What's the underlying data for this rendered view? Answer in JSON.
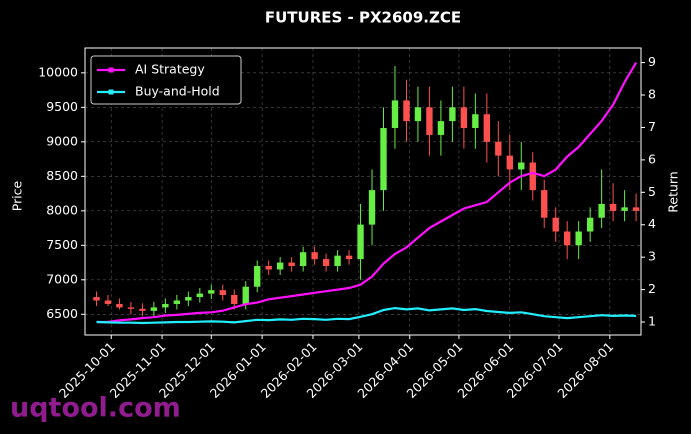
{
  "chart_data": {
    "type": "candlestick",
    "title": "FUTURES - PX2609.ZCE",
    "ylabel": "Price",
    "y2label": "Return",
    "watermark": "uqtool.com",
    "up_color": "#66ee44",
    "down_color": "#ff5050",
    "grid": true,
    "legend": "upper left",
    "x": [
      "2025-09-22",
      "2025-09-29",
      "2025-10-06",
      "2025-10-13",
      "2025-10-20",
      "2025-10-27",
      "2025-11-03",
      "2025-11-10",
      "2025-11-17",
      "2025-11-24",
      "2025-12-01",
      "2025-12-08",
      "2025-12-15",
      "2025-12-22",
      "2025-12-29",
      "2026-01-05",
      "2026-01-12",
      "2026-01-19",
      "2026-01-26",
      "2026-02-02",
      "2026-02-09",
      "2026-02-16",
      "2026-02-23",
      "2026-03-02",
      "2026-03-09",
      "2026-03-16",
      "2026-03-23",
      "2026-03-30",
      "2026-04-06",
      "2026-04-13",
      "2026-04-20",
      "2026-04-27",
      "2026-05-04",
      "2026-05-11",
      "2026-05-18",
      "2026-05-25",
      "2026-06-01",
      "2026-06-08",
      "2026-06-15",
      "2026-06-22",
      "2026-06-29",
      "2026-07-06",
      "2026-07-13",
      "2026-07-20",
      "2026-07-27",
      "2026-08-03",
      "2026-08-10",
      "2026-08-17"
    ],
    "open": [
      6750,
      6700,
      6650,
      6600,
      6580,
      6550,
      6600,
      6650,
      6700,
      6750,
      6800,
      6850,
      6780,
      6650,
      6900,
      7200,
      7150,
      7250,
      7200,
      7400,
      7300,
      7200,
      7350,
      7300,
      7800,
      8300,
      9200,
      9600,
      9300,
      9500,
      9100,
      9300,
      9500,
      9200,
      9400,
      9000,
      8800,
      8600,
      8700,
      8300,
      7900,
      7700,
      7500,
      7700,
      7900,
      8100,
      8000,
      8050
    ],
    "high": [
      6830,
      6780,
      6730,
      6680,
      6660,
      6680,
      6730,
      6780,
      6830,
      6880,
      6930,
      6930,
      6860,
      6980,
      7280,
      7280,
      7330,
      7330,
      7480,
      7480,
      7380,
      7430,
      7430,
      8100,
      8600,
      9500,
      10100,
      9900,
      9800,
      9800,
      9600,
      9800,
      9800,
      9700,
      9700,
      9300,
      9100,
      9000,
      8850,
      8450,
      8050,
      7850,
      7850,
      8050,
      8600,
      8400,
      8300,
      8250
    ],
    "low": [
      6620,
      6620,
      6570,
      6500,
      6470,
      6470,
      6520,
      6570,
      6620,
      6670,
      6720,
      6700,
      6570,
      6570,
      6820,
      7070,
      7070,
      7120,
      7120,
      7220,
      7120,
      7120,
      7220,
      7000,
      7500,
      8000,
      8900,
      9000,
      9000,
      8800,
      8800,
      9000,
      8900,
      8900,
      8700,
      8500,
      8300,
      8300,
      8150,
      7750,
      7550,
      7300,
      7300,
      7550,
      7750,
      7850,
      7850,
      7850
    ],
    "close": [
      6700,
      6650,
      6600,
      6580,
      6550,
      6600,
      6650,
      6700,
      6750,
      6800,
      6850,
      6780,
      6650,
      6900,
      7200,
      7150,
      7250,
      7200,
      7400,
      7300,
      7200,
      7350,
      7300,
      7800,
      8300,
      9200,
      9600,
      9300,
      9500,
      9100,
      9300,
      9500,
      9200,
      9400,
      9000,
      8800,
      8600,
      8700,
      8300,
      7900,
      7700,
      7500,
      7700,
      7900,
      8100,
      8000,
      8050,
      8000
    ],
    "series": [
      {
        "name": "AI Strategy",
        "color": "#ff10ff",
        "axis": "y2",
        "values": [
          1.0,
          1.0,
          1.05,
          1.08,
          1.12,
          1.15,
          1.2,
          1.22,
          1.25,
          1.28,
          1.3,
          1.35,
          1.45,
          1.55,
          1.6,
          1.7,
          1.75,
          1.8,
          1.85,
          1.9,
          1.95,
          2.0,
          2.05,
          2.15,
          2.4,
          2.8,
          3.1,
          3.3,
          3.6,
          3.9,
          4.1,
          4.3,
          4.5,
          4.6,
          4.7,
          5.0,
          5.3,
          5.5,
          5.6,
          5.5,
          5.7,
          6.1,
          6.4,
          6.8,
          7.2,
          7.7,
          8.4,
          9.0
        ]
      },
      {
        "name": "Buy-and-Hold",
        "color": "#22eeff",
        "axis": "y2",
        "values": [
          1.0,
          0.99,
          0.98,
          0.98,
          0.97,
          0.98,
          0.99,
          1.0,
          1.0,
          1.01,
          1.02,
          1.01,
          0.99,
          1.03,
          1.07,
          1.06,
          1.08,
          1.07,
          1.1,
          1.09,
          1.07,
          1.1,
          1.09,
          1.16,
          1.24,
          1.37,
          1.43,
          1.39,
          1.42,
          1.36,
          1.39,
          1.42,
          1.37,
          1.4,
          1.34,
          1.31,
          1.28,
          1.3,
          1.24,
          1.18,
          1.15,
          1.12,
          1.15,
          1.18,
          1.21,
          1.19,
          1.2,
          1.19
        ]
      }
    ],
    "xlim": [
      "2025-09-15",
      "2026-08-20"
    ],
    "xticks": [
      "2025-10-01",
      "2025-11-01",
      "2025-12-01",
      "2026-01-01",
      "2026-02-01",
      "2026-03-01",
      "2026-04-01",
      "2026-05-01",
      "2026-06-01",
      "2026-07-01",
      "2026-08-01"
    ],
    "ylim": [
      6200,
      10360
    ],
    "yticks": [
      6500,
      7000,
      7500,
      8000,
      8500,
      9000,
      9500,
      10000
    ],
    "y2lim": [
      0.6,
      9.45
    ],
    "y2ticks": [
      1,
      2,
      3,
      4,
      5,
      6,
      7,
      8,
      9
    ]
  }
}
